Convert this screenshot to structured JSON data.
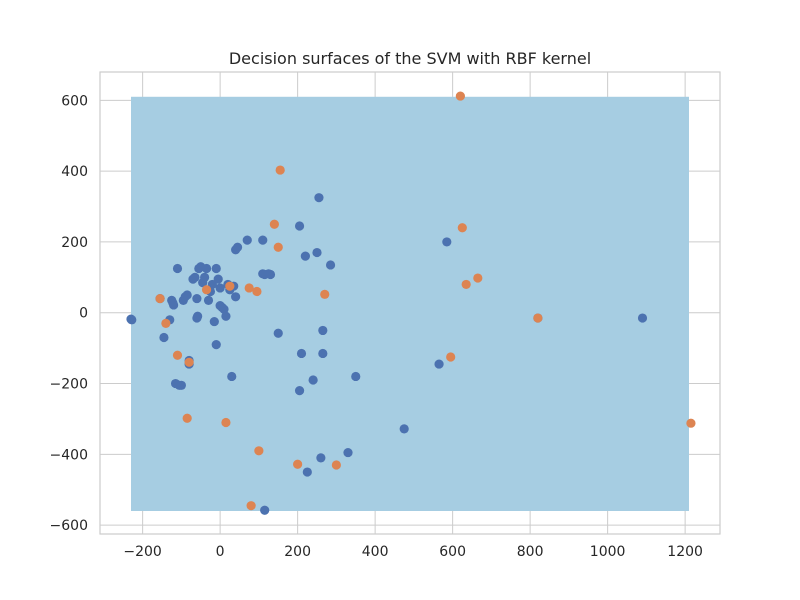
{
  "chart_data": {
    "type": "scatter",
    "title": "Decision surfaces of the SVM with RBF kernel",
    "xlabel": "",
    "ylabel": "",
    "xlim": [
      -310,
      1290
    ],
    "ylim": [
      -625,
      680
    ],
    "x_ticks": [
      -200,
      0,
      200,
      400,
      600,
      800,
      1000,
      1200
    ],
    "y_ticks": [
      -600,
      -400,
      -200,
      0,
      200,
      400,
      600
    ],
    "x_tick_labels": [
      "−200",
      "0",
      "200",
      "400",
      "600",
      "800",
      "1000",
      "1200"
    ],
    "y_tick_labels": [
      "−600",
      "−400",
      "−200",
      "0",
      "200",
      "400",
      "600"
    ],
    "grid": true,
    "decision_region": {
      "x": [
        -230,
        1210
      ],
      "y": [
        -560,
        610
      ]
    },
    "colors": {
      "region": "#a6cde2",
      "class_a": "#4c72b0",
      "class_b": "#dd8452",
      "grid": "#cccccc",
      "axes": "#cccccc"
    },
    "series": [
      {
        "values": [
          [
            -230,
            -18
          ],
          [
            -228,
            -20
          ],
          [
            -155,
            40
          ],
          [
            -145,
            -70
          ],
          [
            -130,
            -20
          ],
          [
            -125,
            35
          ],
          [
            -122,
            28
          ],
          [
            -120,
            22
          ],
          [
            -115,
            -200
          ],
          [
            -110,
            125
          ],
          [
            -105,
            -205
          ],
          [
            -100,
            -205
          ],
          [
            -95,
            35
          ],
          [
            -90,
            45
          ],
          [
            -85,
            50
          ],
          [
            -80,
            -135
          ],
          [
            -80,
            -145
          ],
          [
            -70,
            95
          ],
          [
            -65,
            100
          ],
          [
            -60,
            40
          ],
          [
            -60,
            -15
          ],
          [
            -58,
            -10
          ],
          [
            -55,
            125
          ],
          [
            -50,
            130
          ],
          [
            -45,
            85
          ],
          [
            -40,
            100
          ],
          [
            -35,
            125
          ],
          [
            -30,
            35
          ],
          [
            -25,
            60
          ],
          [
            -20,
            80
          ],
          [
            -15,
            -25
          ],
          [
            -10,
            125
          ],
          [
            -10,
            -90
          ],
          [
            -5,
            95
          ],
          [
            0,
            70
          ],
          [
            0,
            20
          ],
          [
            5,
            15
          ],
          [
            10,
            10
          ],
          [
            15,
            -10
          ],
          [
            20,
            80
          ],
          [
            25,
            65
          ],
          [
            30,
            -180
          ],
          [
            35,
            75
          ],
          [
            40,
            45
          ],
          [
            40,
            178
          ],
          [
            45,
            185
          ],
          [
            70,
            205
          ],
          [
            110,
            205
          ],
          [
            110,
            110
          ],
          [
            115,
            108
          ],
          [
            125,
            110
          ],
          [
            130,
            108
          ],
          [
            150,
            -58
          ],
          [
            205,
            245
          ],
          [
            210,
            -115
          ],
          [
            205,
            -220
          ],
          [
            220,
            160
          ],
          [
            225,
            -450
          ],
          [
            240,
            -190
          ],
          [
            250,
            170
          ],
          [
            255,
            325
          ],
          [
            260,
            -410
          ],
          [
            265,
            -50
          ],
          [
            265,
            -115
          ],
          [
            285,
            135
          ],
          [
            330,
            -395
          ],
          [
            350,
            -180
          ],
          [
            475,
            -328
          ],
          [
            565,
            -145
          ],
          [
            585,
            200
          ],
          [
            820,
            -15
          ],
          [
            1090,
            -15
          ],
          [
            115,
            -558
          ]
        ]
      },
      {
        "values": [
          [
            -155,
            40
          ],
          [
            -140,
            -30
          ],
          [
            -110,
            -120
          ],
          [
            -85,
            -298
          ],
          [
            -80,
            -140
          ],
          [
            -35,
            65
          ],
          [
            15,
            -310
          ],
          [
            25,
            75
          ],
          [
            75,
            70
          ],
          [
            80,
            -545
          ],
          [
            95,
            60
          ],
          [
            100,
            -390
          ],
          [
            140,
            250
          ],
          [
            150,
            185
          ],
          [
            155,
            403
          ],
          [
            200,
            -428
          ],
          [
            270,
            52
          ],
          [
            300,
            -430
          ],
          [
            595,
            -125
          ],
          [
            620,
            612
          ],
          [
            625,
            240
          ],
          [
            635,
            80
          ],
          [
            665,
            98
          ],
          [
            820,
            -15
          ],
          [
            1215,
            -312
          ]
        ]
      }
    ]
  }
}
